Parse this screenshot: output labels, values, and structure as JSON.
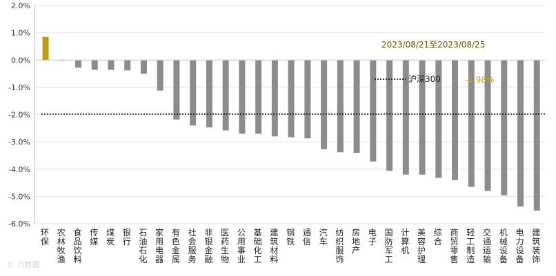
{
  "chart_data": {
    "type": "bar",
    "date_range": "2023/08/21至2023/08/25",
    "categories": [
      "环保",
      "农林牧渔",
      "食品饮料",
      "传媒",
      "煤炭",
      "银行",
      "石油石化",
      "家用电器",
      "有色金属",
      "社会服务",
      "非银金融",
      "医药生物",
      "公用事业",
      "基础化工",
      "建筑材料",
      "钢铁",
      "通信",
      "汽车",
      "纺织服饰",
      "房地产",
      "电子",
      "国防军工",
      "计算机",
      "美容护理",
      "综合",
      "商贸零售",
      "轻工制造",
      "交通运输",
      "机械设备",
      "电力设备",
      "建筑装饰"
    ],
    "values": [
      0.85,
      -0.02,
      -0.28,
      -0.36,
      -0.36,
      -0.38,
      -0.5,
      -1.12,
      -2.18,
      -2.4,
      -2.47,
      -2.58,
      -2.7,
      -2.7,
      -2.8,
      -2.83,
      -2.87,
      -3.27,
      -3.38,
      -3.4,
      -3.72,
      -4.06,
      -4.2,
      -4.2,
      -4.32,
      -4.4,
      -4.65,
      -4.8,
      -4.96,
      -5.37,
      -5.52
    ],
    "y_ticks": [
      "2.0%",
      "1.0%",
      "0.0%",
      "-1.0%",
      "-2.0%",
      "-3.0%",
      "-4.0%",
      "-5.0%",
      "-6.0%"
    ],
    "ylim": [
      -6,
      2
    ],
    "grid": true,
    "bar_colors": {
      "positive": "#c19a12",
      "negative": "#8c8c8c"
    },
    "reference": {
      "name": "沪深300",
      "value": -1.98,
      "label": "-1.98%",
      "color": "#000000",
      "label_color": "#d4b000"
    }
  },
  "watermark": "© 六数据"
}
